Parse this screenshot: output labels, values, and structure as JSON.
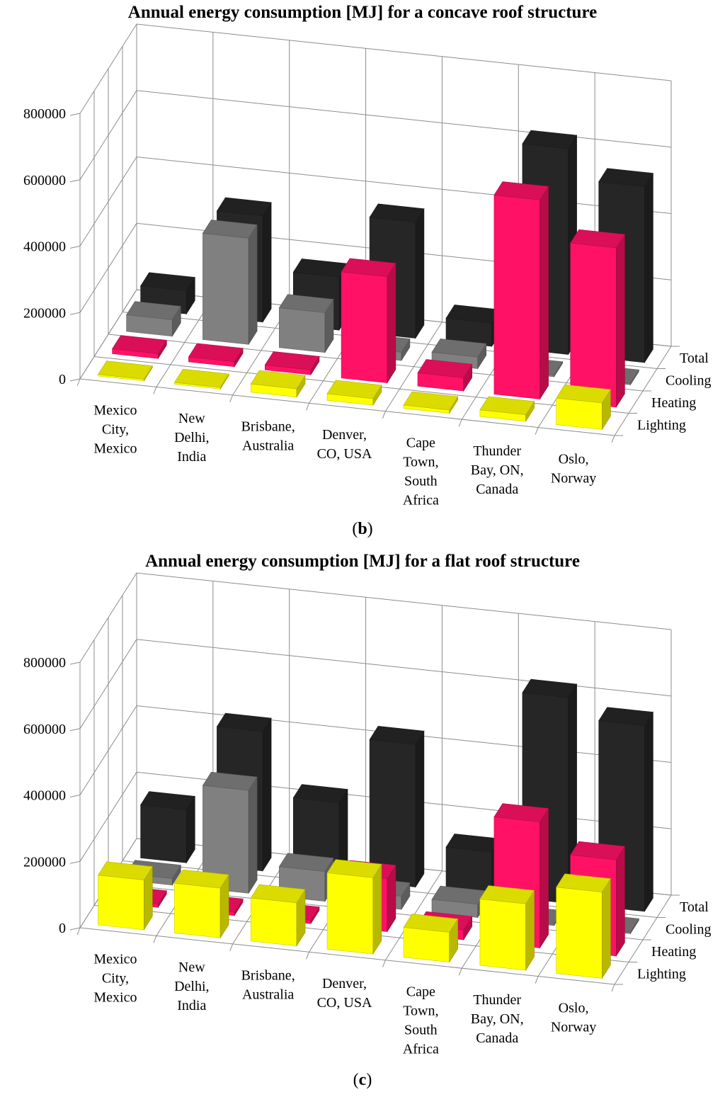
{
  "colors": {
    "Lighting": "#ffff00",
    "Heating": "#ff1166",
    "Cooling": "#808080",
    "Total": "#262626"
  },
  "chart_data": [
    {
      "type": "bar",
      "title": "Annual energy consumption [MJ] for a concave roof structure",
      "caption_open": "(",
      "caption_letter": "b",
      "caption_close": ")",
      "ylim": [
        0,
        800000
      ],
      "yticks": [
        "0",
        "200000",
        "400000",
        "600000",
        "800000"
      ],
      "categories": [
        "Mexico City, Mexico",
        "New Delhi, India",
        "Brisbane, Australia",
        "Denver, CO, USA",
        "Cape Town, South Africa",
        "Thunder Bay, ON, Canada",
        "Oslo, Norway"
      ],
      "category_lines": [
        [
          "Mexico",
          "City,",
          "Mexico"
        ],
        [
          "New",
          "Delhi,",
          "India"
        ],
        [
          "Brisbane,",
          "Australia"
        ],
        [
          "Denver,",
          "CO, USA"
        ],
        [
          "Cape",
          "Town,",
          "South",
          "Africa"
        ],
        [
          "Thunder",
          "Bay, ON,",
          "Canada"
        ],
        [
          "Oslo,",
          "Norway"
        ]
      ],
      "series": [
        {
          "name": "Lighting",
          "values": [
            5000,
            5000,
            25000,
            20000,
            10000,
            20000,
            80000
          ]
        },
        {
          "name": "Heating",
          "values": [
            15000,
            15000,
            15000,
            320000,
            40000,
            600000,
            480000
          ]
        },
        {
          "name": "Cooling",
          "values": [
            50000,
            320000,
            120000,
            25000,
            35000,
            5000,
            5000
          ]
        },
        {
          "name": "Total",
          "values": [
            70000,
            320000,
            160000,
            350000,
            70000,
            620000,
            530000
          ]
        }
      ]
    },
    {
      "type": "bar",
      "title": "Annual energy consumption [MJ] for a flat roof structure",
      "caption_open": "(",
      "caption_letter": "c",
      "caption_close": ")",
      "ylim": [
        0,
        800000
      ],
      "yticks": [
        "0",
        "200000",
        "400000",
        "600000",
        "800000"
      ],
      "categories": [
        "Mexico City, Mexico",
        "New Delhi, India",
        "Brisbane, Australia",
        "Denver, CO, USA",
        "Cape Town, South Africa",
        "Thunder Bay, ON, Canada",
        "Oslo, Norway"
      ],
      "category_lines": [
        [
          "Mexico",
          "City,",
          "Mexico"
        ],
        [
          "New",
          "Delhi,",
          "India"
        ],
        [
          "Brisbane,",
          "Australia"
        ],
        [
          "Denver,",
          "CO, USA"
        ],
        [
          "Cape",
          "Town,",
          "South",
          "Africa"
        ],
        [
          "Thunder",
          "Bay, ON,",
          "Canada"
        ],
        [
          "Oslo,",
          "Norway"
        ]
      ],
      "series": [
        {
          "name": "Lighting",
          "values": [
            150000,
            150000,
            130000,
            230000,
            90000,
            200000,
            260000
          ]
        },
        {
          "name": "Heating",
          "values": [
            10000,
            10000,
            10000,
            160000,
            30000,
            380000,
            290000
          ]
        },
        {
          "name": "Cooling",
          "values": [
            20000,
            310000,
            90000,
            40000,
            40000,
            5000,
            5000
          ]
        },
        {
          "name": "Total",
          "values": [
            160000,
            420000,
            230000,
            430000,
            130000,
            620000,
            560000
          ]
        }
      ]
    }
  ]
}
